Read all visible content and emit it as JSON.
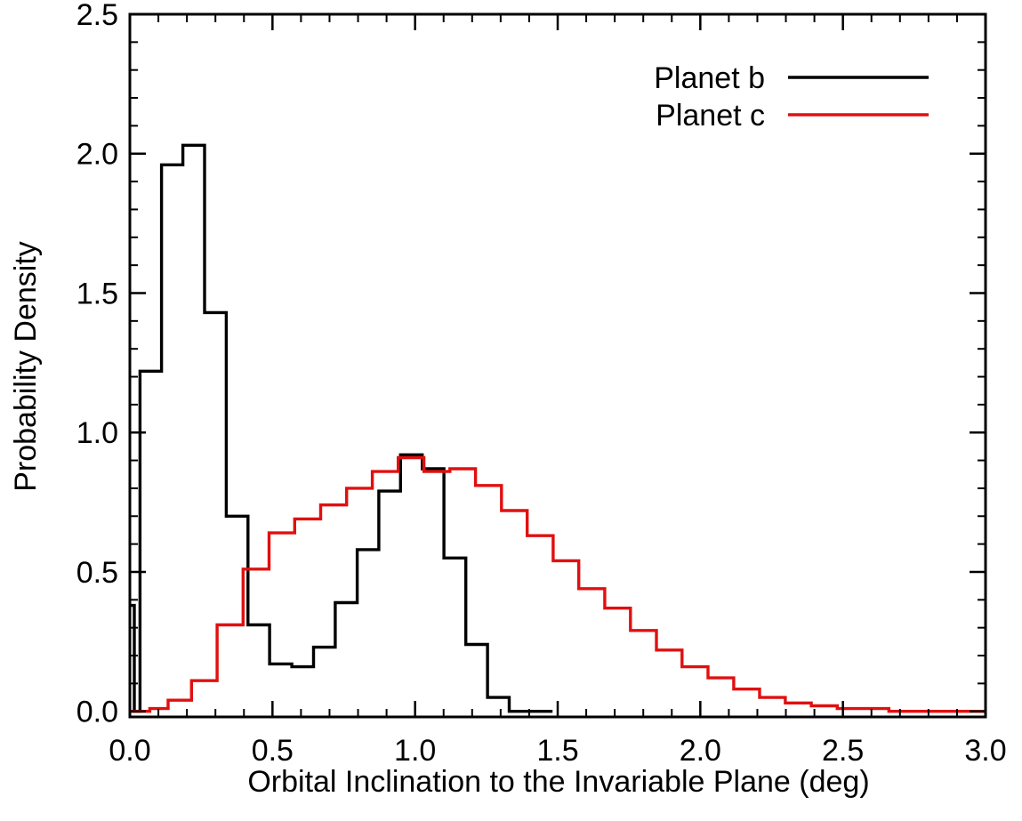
{
  "chart_data": {
    "type": "line",
    "title": "",
    "xlabel": "Orbital Inclination to the Invariable Plane (deg)",
    "ylabel": "Probability Density",
    "xlim": [
      0.0,
      3.0
    ],
    "ylim": [
      -0.02,
      2.5
    ],
    "x_ticks": [
      "0.0",
      "0.5",
      "1.0",
      "1.5",
      "2.0",
      "2.5",
      "3.0"
    ],
    "y_ticks": [
      "0.0",
      "0.5",
      "1.0",
      "1.5",
      "2.0",
      "2.5"
    ],
    "x_tick_values": [
      0.0,
      0.5,
      1.0,
      1.5,
      2.0,
      2.5,
      3.0
    ],
    "y_tick_values": [
      0.0,
      0.5,
      1.0,
      1.5,
      2.0,
      2.5
    ],
    "grid": false,
    "legend_position": "top-right",
    "series": [
      {
        "name": "Planet b",
        "color": "#000000",
        "bin_edges": [
          0.0,
          0.0155,
          0.0355,
          0.111,
          0.186,
          0.262,
          0.338,
          0.414,
          0.49,
          0.568,
          0.644,
          0.72,
          0.797,
          0.873,
          0.949,
          1.025,
          1.101,
          1.178,
          1.254,
          1.33,
          1.406,
          1.482
        ],
        "values": [
          0.38,
          0.0,
          1.22,
          1.96,
          2.03,
          1.43,
          0.7,
          0.31,
          0.17,
          0.16,
          0.23,
          0.39,
          0.58,
          0.79,
          0.92,
          0.87,
          0.55,
          0.24,
          0.05,
          0.0,
          0.0
        ]
      },
      {
        "name": "Planet c",
        "color": "#e01010",
        "bin_edges": [
          0.0,
          0.07,
          0.134,
          0.216,
          0.306,
          0.397,
          0.488,
          0.578,
          0.669,
          0.76,
          0.85,
          0.941,
          1.031,
          1.122,
          1.212,
          1.303,
          1.393,
          1.484,
          1.574,
          1.665,
          1.755,
          1.846,
          1.936,
          2.027,
          2.117,
          2.208,
          2.298,
          2.389,
          2.48,
          2.57,
          2.661,
          2.751,
          2.842,
          2.932,
          3.0
        ],
        "values": [
          0.0,
          0.01,
          0.04,
          0.11,
          0.31,
          0.51,
          0.64,
          0.69,
          0.74,
          0.8,
          0.86,
          0.91,
          0.86,
          0.87,
          0.81,
          0.72,
          0.63,
          0.54,
          0.44,
          0.37,
          0.29,
          0.22,
          0.16,
          0.12,
          0.08,
          0.05,
          0.03,
          0.02,
          0.01,
          0.01,
          0.0,
          0.0,
          0.0,
          0.0
        ]
      }
    ]
  }
}
